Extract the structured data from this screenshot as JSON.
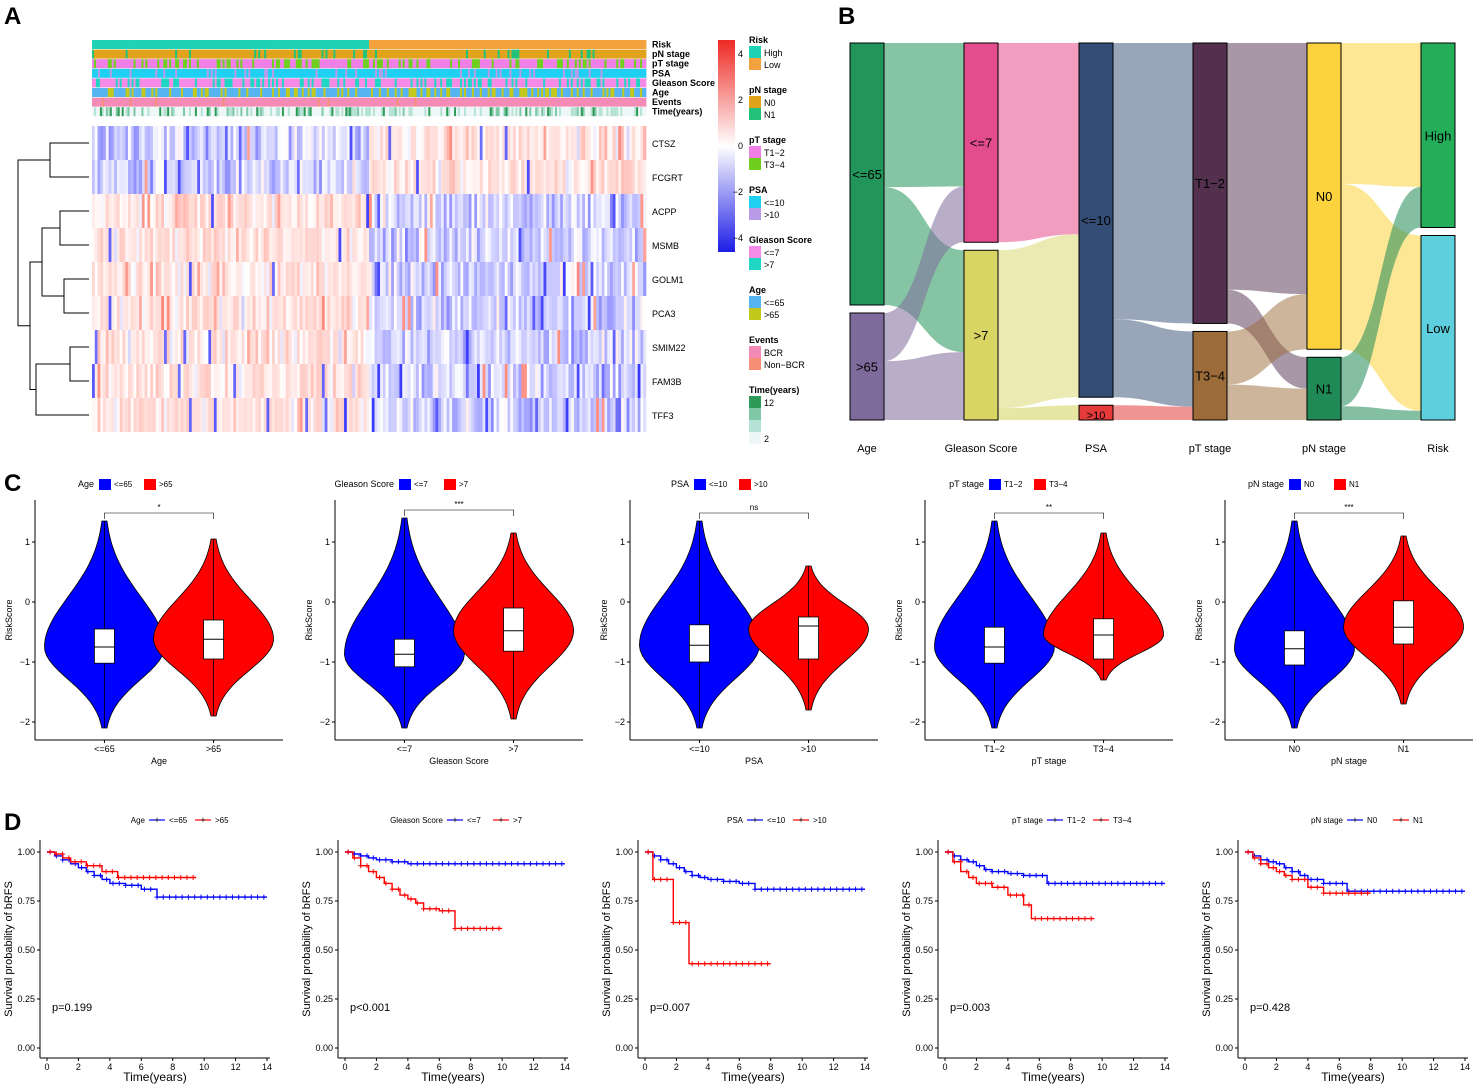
{
  "panels": {
    "a": "A",
    "b": "B",
    "c": "C",
    "d": "D"
  },
  "heatmap": {
    "annotation_rows": [
      "Risk",
      "pN stage",
      "pT stage",
      "PSA",
      "Gleason Score",
      "Age",
      "Events",
      "Time(years)"
    ],
    "genes": [
      "CTSZ",
      "FCGRT",
      "ACPP",
      "MSMB",
      "GOLM1",
      "PCA3",
      "SMIM22",
      "FAM3B",
      "TFF3"
    ],
    "color_scale": {
      "ticks": [
        "4",
        "2",
        "0",
        "−2",
        "−4"
      ],
      "values": [
        4,
        2,
        0,
        -2,
        -4
      ],
      "colors": [
        "#ee2a24",
        "#ffffff",
        "#1c1ce6"
      ]
    },
    "legend": [
      {
        "title": "Risk",
        "items": [
          {
            "label": "High",
            "color": "#1ed3b5"
          },
          {
            "label": "Low",
            "color": "#f4a23e"
          }
        ]
      },
      {
        "title": "pN stage",
        "items": [
          {
            "label": "N0",
            "color": "#e0a31b"
          },
          {
            "label": "N1",
            "color": "#22c27a"
          }
        ]
      },
      {
        "title": "pT stage",
        "items": [
          {
            "label": "T1−2",
            "color": "#f07fe6"
          },
          {
            "label": "T3−4",
            "color": "#6fcf1f"
          }
        ]
      },
      {
        "title": "PSA",
        "items": [
          {
            "label": "<=10",
            "color": "#1fd0f2"
          },
          {
            "label": ">10",
            "color": "#b79be8"
          }
        ]
      },
      {
        "title": "Gleason Score",
        "items": [
          {
            "label": "<=7",
            "color": "#f58be6"
          },
          {
            "label": ">7",
            "color": "#1fd6c4"
          }
        ]
      },
      {
        "title": "Age",
        "items": [
          {
            "label": "<=65",
            "color": "#56b4f0"
          },
          {
            "label": ">65",
            "color": "#c3c91c"
          }
        ]
      },
      {
        "title": "Events",
        "items": [
          {
            "label": "BCR",
            "color": "#f48bb7"
          },
          {
            "label": "Non−BCR",
            "color": "#f68f76"
          }
        ]
      },
      {
        "title": "Time(years)",
        "items": [
          {
            "label": "12",
            "color": "#2e9a57"
          },
          {
            "label": "",
            "color": "#7ec8a6"
          },
          {
            "label": "",
            "color": "#b6e2d6"
          },
          {
            "label": "2",
            "color": "#edf7f7"
          }
        ]
      }
    ]
  },
  "sankey": {
    "axes": [
      "Age",
      "Gleason Score",
      "PSA",
      "pT stage",
      "pN stage",
      "Risk"
    ],
    "nodes": [
      {
        "axis": 0,
        "label": "<=65",
        "share": 0.71,
        "color": "#22955a"
      },
      {
        "axis": 0,
        "label": ">65",
        "share": 0.29,
        "color": "#7e6b9b"
      },
      {
        "axis": 1,
        "label": "<=7",
        "share": 0.54,
        "color": "#e44d8d"
      },
      {
        "axis": 1,
        "label": ">7",
        "share": 0.46,
        "color": "#d8d565"
      },
      {
        "axis": 2,
        "label": "<=10",
        "share": 0.96,
        "color": "#344d75"
      },
      {
        "axis": 2,
        "label": ">10",
        "share": 0.04,
        "color": "#e43a3a"
      },
      {
        "axis": 3,
        "label": "T1−2",
        "share": 0.76,
        "color": "#52304e"
      },
      {
        "axis": 3,
        "label": "T3−4",
        "share": 0.24,
        "color": "#9b6b3a"
      },
      {
        "axis": 4,
        "label": "N0",
        "share": 0.83,
        "color": "#fcd33d"
      },
      {
        "axis": 4,
        "label": "N1",
        "share": 0.17,
        "color": "#1f8a56"
      },
      {
        "axis": 5,
        "label": "High",
        "share": 0.5,
        "color": "#24ae5a"
      },
      {
        "axis": 5,
        "label": "Low",
        "share": 0.5,
        "color": "#5ecfdc"
      }
    ]
  },
  "chart_data": [
    {
      "type": "violin",
      "panel": "C",
      "legend_title": "Age",
      "groups": [
        "<=65",
        ">65"
      ],
      "xlabel": "Age",
      "ylabel": "RiskScore",
      "ylim": [
        -2.3,
        1.7
      ],
      "yticks": [
        -2,
        -1,
        0,
        1
      ],
      "signif": "*",
      "box": [
        {
          "q1": -1.02,
          "median": -0.75,
          "q3": -0.45,
          "wmin": -2.1,
          "wmax": 1.35
        },
        {
          "q1": -0.95,
          "median": -0.62,
          "q3": -0.3,
          "wmin": -1.9,
          "wmax": 1.05
        }
      ],
      "density_peak": [
        -0.75,
        -0.62
      ],
      "colors": [
        "#0000ff",
        "#ff0000"
      ]
    },
    {
      "type": "violin",
      "panel": "C",
      "legend_title": "Gleason Score",
      "groups": [
        "<=7",
        ">7"
      ],
      "xlabel": "Gleason Score",
      "ylabel": "RiskScore",
      "ylim": [
        -2.3,
        1.7
      ],
      "yticks": [
        -2,
        -1,
        0,
        1
      ],
      "signif": "***",
      "box": [
        {
          "q1": -1.08,
          "median": -0.87,
          "q3": -0.62,
          "wmin": -2.1,
          "wmax": 1.4
        },
        {
          "q1": -0.82,
          "median": -0.48,
          "q3": -0.1,
          "wmin": -1.95,
          "wmax": 1.15
        }
      ],
      "density_peak": [
        -0.87,
        -0.48
      ],
      "colors": [
        "#0000ff",
        "#ff0000"
      ]
    },
    {
      "type": "violin",
      "panel": "C",
      "legend_title": "PSA",
      "groups": [
        "<=10",
        ">10"
      ],
      "xlabel": "PSA",
      "ylabel": "RiskScore",
      "ylim": [
        -2.3,
        1.7
      ],
      "yticks": [
        -2,
        -1,
        0,
        1
      ],
      "signif": "ns",
      "box": [
        {
          "q1": -1.0,
          "median": -0.72,
          "q3": -0.38,
          "wmin": -2.1,
          "wmax": 1.35
        },
        {
          "q1": -0.95,
          "median": -0.4,
          "q3": -0.25,
          "wmin": -1.8,
          "wmax": 0.6
        }
      ],
      "density_peak": [
        -0.72,
        -0.45
      ],
      "colors": [
        "#0000ff",
        "#ff0000"
      ]
    },
    {
      "type": "violin",
      "panel": "C",
      "legend_title": "pT stage",
      "groups": [
        "T1−2",
        "T3−4"
      ],
      "xlabel": "pT stage",
      "ylabel": "RiskScore",
      "ylim": [
        -2.3,
        1.7
      ],
      "yticks": [
        -2,
        -1,
        0,
        1
      ],
      "signif": "**",
      "box": [
        {
          "q1": -1.02,
          "median": -0.75,
          "q3": -0.42,
          "wmin": -2.1,
          "wmax": 1.35
        },
        {
          "q1": -0.95,
          "median": -0.55,
          "q3": -0.28,
          "wmin": -1.3,
          "wmax": 1.15
        }
      ],
      "density_peak": [
        -0.75,
        -0.55
      ],
      "colors": [
        "#0000ff",
        "#ff0000"
      ]
    },
    {
      "type": "violin",
      "panel": "C",
      "legend_title": "pN stage",
      "groups": [
        "N0",
        "N1"
      ],
      "xlabel": "pN stage",
      "ylabel": "RiskScore",
      "ylim": [
        -2.3,
        1.7
      ],
      "yticks": [
        -2,
        -1,
        0,
        1
      ],
      "signif": "***",
      "box": [
        {
          "q1": -1.05,
          "median": -0.78,
          "q3": -0.48,
          "wmin": -2.1,
          "wmax": 1.35
        },
        {
          "q1": -0.7,
          "median": -0.42,
          "q3": 0.02,
          "wmin": -1.7,
          "wmax": 1.1
        }
      ],
      "density_peak": [
        -0.78,
        -0.42
      ],
      "colors": [
        "#0000ff",
        "#ff0000"
      ]
    },
    {
      "type": "line",
      "panel": "D",
      "legend_title": "Age",
      "series_names": [
        "<=65",
        ">65"
      ],
      "xlabel": "Time(years)",
      "ylabel": "Survival probability of bRFS",
      "xlim": [
        0,
        14
      ],
      "ylim": [
        0,
        1
      ],
      "xticks": [
        0,
        2,
        4,
        6,
        8,
        10,
        12,
        14
      ],
      "yticks": [
        "0.00",
        "0.25",
        "0.50",
        "0.75",
        "1.00"
      ],
      "pvalue": "p=0.199",
      "series": [
        {
          "color": "#0000ff",
          "x": [
            0,
            0.5,
            1,
            1.5,
            2,
            2.5,
            3,
            3.5,
            4,
            5,
            6,
            7,
            14
          ],
          "y": [
            1,
            0.98,
            0.96,
            0.94,
            0.92,
            0.9,
            0.88,
            0.86,
            0.84,
            0.83,
            0.81,
            0.77,
            0.77
          ]
        },
        {
          "color": "#ff0000",
          "x": [
            0,
            0.5,
            1,
            1.5,
            2.5,
            3.5,
            4.5,
            9.5
          ],
          "y": [
            1,
            0.99,
            0.97,
            0.95,
            0.93,
            0.9,
            0.87,
            0.87
          ]
        }
      ]
    },
    {
      "type": "line",
      "panel": "D",
      "legend_title": "Gleason Score",
      "series_names": [
        "<=7",
        ">7"
      ],
      "xlabel": "Time(years)",
      "ylabel": "Survival probability of bRFS",
      "xlim": [
        0,
        14
      ],
      "ylim": [
        0,
        1
      ],
      "xticks": [
        0,
        2,
        4,
        6,
        8,
        10,
        12,
        14
      ],
      "yticks": [
        "0.00",
        "0.25",
        "0.50",
        "0.75",
        "1.00"
      ],
      "pvalue": "p<0.001",
      "series": [
        {
          "color": "#0000ff",
          "x": [
            0,
            0.5,
            1,
            1.5,
            2,
            3,
            4,
            14
          ],
          "y": [
            1,
            0.99,
            0.98,
            0.97,
            0.96,
            0.95,
            0.94,
            0.94
          ]
        },
        {
          "color": "#ff0000",
          "x": [
            0,
            0.5,
            1,
            1.5,
            2,
            2.5,
            3,
            3.5,
            4,
            4.5,
            5,
            6,
            7,
            10
          ],
          "y": [
            1,
            0.97,
            0.93,
            0.9,
            0.87,
            0.84,
            0.81,
            0.78,
            0.76,
            0.74,
            0.71,
            0.7,
            0.61,
            0.61
          ]
        }
      ]
    },
    {
      "type": "line",
      "panel": "D",
      "legend_title": "PSA",
      "series_names": [
        "<=10",
        ">10"
      ],
      "xlabel": "Time(years)",
      "ylabel": "Survival probability of bRFS",
      "xlim": [
        0,
        14
      ],
      "ylim": [
        0,
        1
      ],
      "xticks": [
        0,
        2,
        4,
        6,
        8,
        10,
        12,
        14
      ],
      "yticks": [
        "0.00",
        "0.25",
        "0.50",
        "0.75",
        "1.00"
      ],
      "pvalue": "p=0.007",
      "series": [
        {
          "color": "#0000ff",
          "x": [
            0,
            0.5,
            1,
            1.5,
            2,
            2.5,
            3,
            3.5,
            4,
            5,
            6,
            7,
            14
          ],
          "y": [
            1,
            0.98,
            0.96,
            0.94,
            0.92,
            0.9,
            0.88,
            0.87,
            0.86,
            0.85,
            0.84,
            0.81,
            0.81
          ]
        },
        {
          "color": "#ff0000",
          "x": [
            0,
            0.5,
            1.8,
            2.8,
            8
          ],
          "y": [
            1,
            0.86,
            0.64,
            0.43,
            0.43
          ]
        }
      ]
    },
    {
      "type": "line",
      "panel": "D",
      "legend_title": "pT stage",
      "series_names": [
        "T1−2",
        "T3−4"
      ],
      "xlabel": "Time(years)",
      "ylabel": "Survival probability of bRFS",
      "xlim": [
        0,
        14
      ],
      "ylim": [
        0,
        1
      ],
      "xticks": [
        0,
        2,
        4,
        6,
        8,
        10,
        12,
        14
      ],
      "yticks": [
        "0.00",
        "0.25",
        "0.50",
        "0.75",
        "1.00"
      ],
      "pvalue": "p=0.003",
      "series": [
        {
          "color": "#0000ff",
          "x": [
            0,
            0.5,
            1,
            1.5,
            2,
            2.5,
            3,
            4,
            5,
            6.5,
            14
          ],
          "y": [
            1,
            0.98,
            0.96,
            0.95,
            0.93,
            0.91,
            0.9,
            0.89,
            0.88,
            0.84,
            0.84
          ]
        },
        {
          "color": "#ff0000",
          "x": [
            0,
            0.5,
            1,
            1.5,
            2,
            3,
            4,
            5,
            5.5,
            9.5
          ],
          "y": [
            1,
            0.95,
            0.9,
            0.87,
            0.84,
            0.82,
            0.78,
            0.73,
            0.66,
            0.66
          ]
        }
      ]
    },
    {
      "type": "line",
      "panel": "D",
      "legend_title": "pN stage",
      "series_names": [
        "N0",
        "N1"
      ],
      "xlabel": "Time(years)",
      "ylabel": "Survival probability of bRFS",
      "xlim": [
        0,
        14
      ],
      "ylim": [
        0,
        1
      ],
      "xticks": [
        0,
        2,
        4,
        6,
        8,
        10,
        12,
        14
      ],
      "yticks": [
        "0.00",
        "0.25",
        "0.50",
        "0.75",
        "1.00"
      ],
      "pvalue": "p=0.428",
      "series": [
        {
          "color": "#0000ff",
          "x": [
            0,
            0.5,
            1,
            1.5,
            2,
            2.5,
            3,
            3.5,
            4,
            5,
            6.5,
            14
          ],
          "y": [
            1,
            0.98,
            0.96,
            0.95,
            0.94,
            0.92,
            0.9,
            0.88,
            0.86,
            0.84,
            0.8,
            0.8
          ]
        },
        {
          "color": "#ff0000",
          "x": [
            0,
            0.5,
            1,
            1.5,
            2,
            2.5,
            3,
            4,
            5,
            8
          ],
          "y": [
            1,
            0.97,
            0.94,
            0.92,
            0.9,
            0.88,
            0.86,
            0.82,
            0.79,
            0.79
          ]
        }
      ]
    }
  ]
}
